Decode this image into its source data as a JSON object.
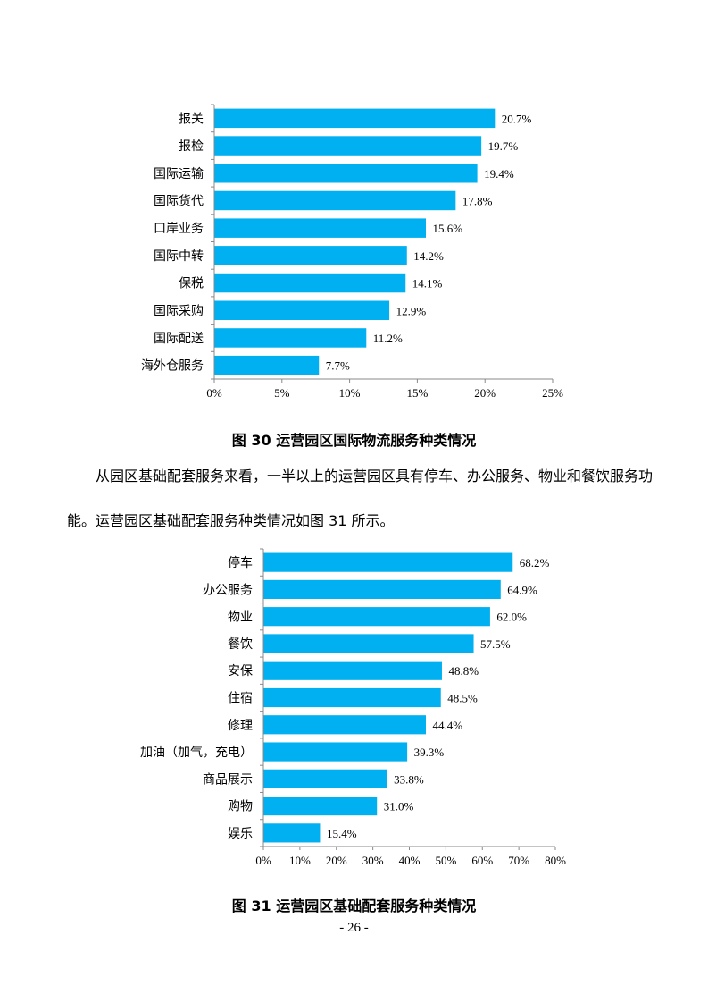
{
  "chart_data": [
    {
      "type": "bar",
      "orientation": "horizontal",
      "categories": [
        "报关",
        "报检",
        "国际运输",
        "国际货代",
        "口岸业务",
        "国际中转",
        "保税",
        "国际采购",
        "国际配送",
        "海外仓服务"
      ],
      "values": [
        20.7,
        19.7,
        19.4,
        17.8,
        15.6,
        14.2,
        14.1,
        12.9,
        11.2,
        7.7
      ],
      "value_labels": [
        "20.7%",
        "19.7%",
        "19.4%",
        "17.8%",
        "15.6%",
        "14.2%",
        "14.1%",
        "12.9%",
        "11.2%",
        "7.7%"
      ],
      "xlim": [
        0,
        25
      ],
      "ticks": [
        0,
        5,
        10,
        15,
        20,
        25
      ],
      "tick_labels": [
        "0%",
        "5%",
        "10%",
        "15%",
        "20%",
        "25%"
      ],
      "bar_color": "#00B0F0",
      "grid": false,
      "title": ""
    },
    {
      "type": "bar",
      "orientation": "horizontal",
      "categories": [
        "停车",
        "办公服务",
        "物业",
        "餐饮",
        "安保",
        "住宿",
        "修理",
        "加油（加气，充电）",
        "商品展示",
        "购物",
        "娱乐"
      ],
      "values": [
        68.2,
        64.9,
        62.0,
        57.5,
        48.8,
        48.5,
        44.4,
        39.3,
        33.8,
        31.0,
        15.4
      ],
      "value_labels": [
        "68.2%",
        "64.9%",
        "62.0%",
        "57.5%",
        "48.8%",
        "48.5%",
        "44.4%",
        "39.3%",
        "33.8%",
        "31.0%",
        "15.4%"
      ],
      "xlim": [
        0,
        80
      ],
      "ticks": [
        0,
        10,
        20,
        30,
        40,
        50,
        60,
        70,
        80
      ],
      "tick_labels": [
        "0%",
        "10%",
        "20%",
        "30%",
        "40%",
        "50%",
        "60%",
        "70%",
        "80%"
      ],
      "bar_color": "#00B0F0",
      "grid": false,
      "title": ""
    }
  ],
  "captions": {
    "fig30": "图 30  运营园区国际物流服务种类情况",
    "fig31": "图 31  运营园区基础配套服务种类情况"
  },
  "paragraph": "从园区基础配套服务来看，一半以上的运营园区具有停车、办公服务、物业和餐饮服务功能。运营园区基础配套服务种类情况如图 31 所示。",
  "page_number": "- 26 -"
}
